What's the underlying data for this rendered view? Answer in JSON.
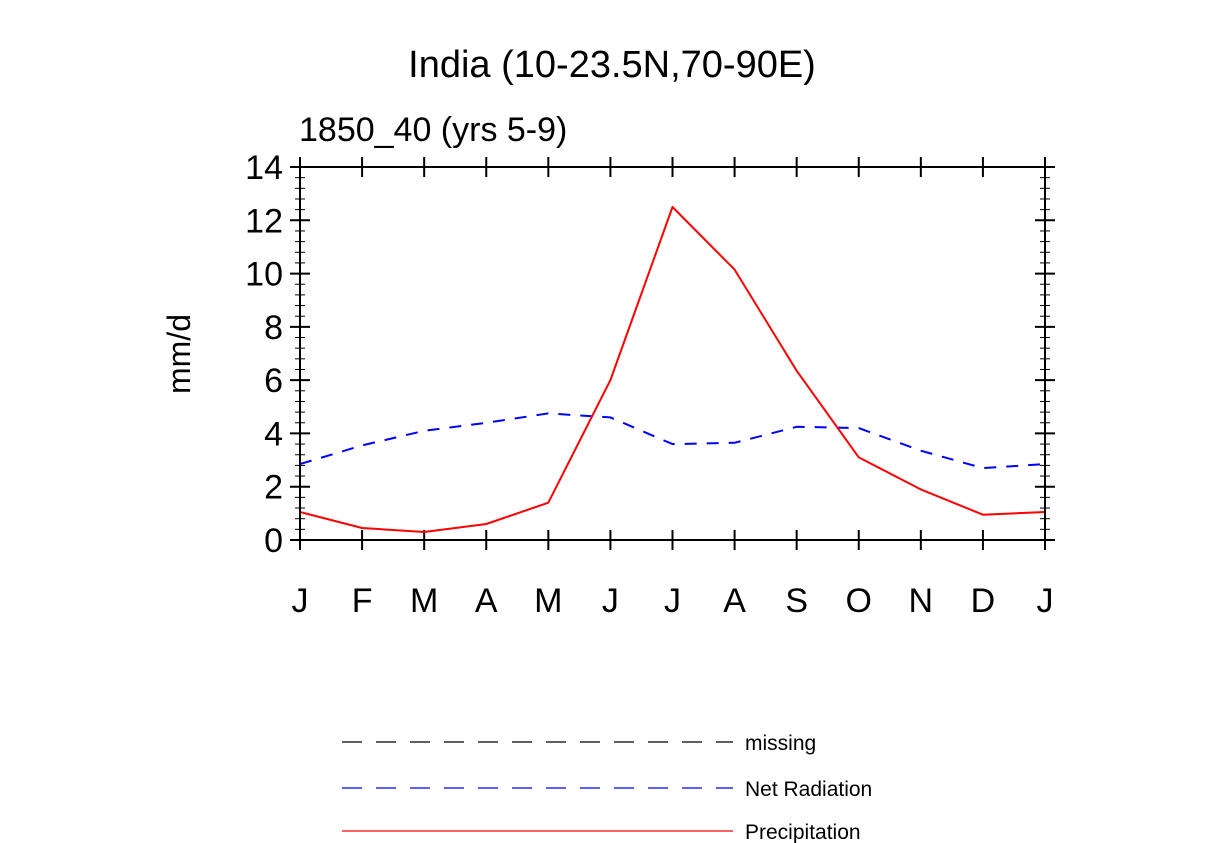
{
  "chart_data": {
    "type": "line",
    "title": "India (10-23.5N,70-90E)",
    "subtitle": "1850_40 (yrs 5-9)",
    "xlabel": "",
    "ylabel": "mm/d",
    "categories": [
      "J",
      "F",
      "M",
      "A",
      "M",
      "J",
      "J",
      "A",
      "S",
      "O",
      "N",
      "D",
      "J"
    ],
    "ylim": [
      0,
      14
    ],
    "yticks": [
      "0",
      "2",
      "4",
      "6",
      "8",
      "10",
      "12",
      "14"
    ],
    "series": [
      {
        "name": "Net Radiation",
        "color": "#0000ff",
        "style": "dashed",
        "values": [
          2.85,
          3.55,
          4.1,
          4.4,
          4.75,
          4.6,
          3.6,
          3.65,
          4.25,
          4.2,
          3.35,
          2.7,
          2.85
        ]
      },
      {
        "name": "Precipitation",
        "color": "#ff0000",
        "style": "solid",
        "values": [
          1.05,
          0.45,
          0.3,
          0.6,
          1.4,
          6.0,
          12.5,
          10.15,
          6.35,
          3.1,
          1.9,
          0.95,
          1.05
        ]
      }
    ],
    "legend": [
      {
        "label": "missing",
        "color": "#000000",
        "style": "dashed"
      },
      {
        "label": "Net Radiation",
        "color": "#0000ff",
        "style": "dashed"
      },
      {
        "label": "Precipitation",
        "color": "#ff0000",
        "style": "solid"
      }
    ],
    "legend_position": "bottom"
  }
}
